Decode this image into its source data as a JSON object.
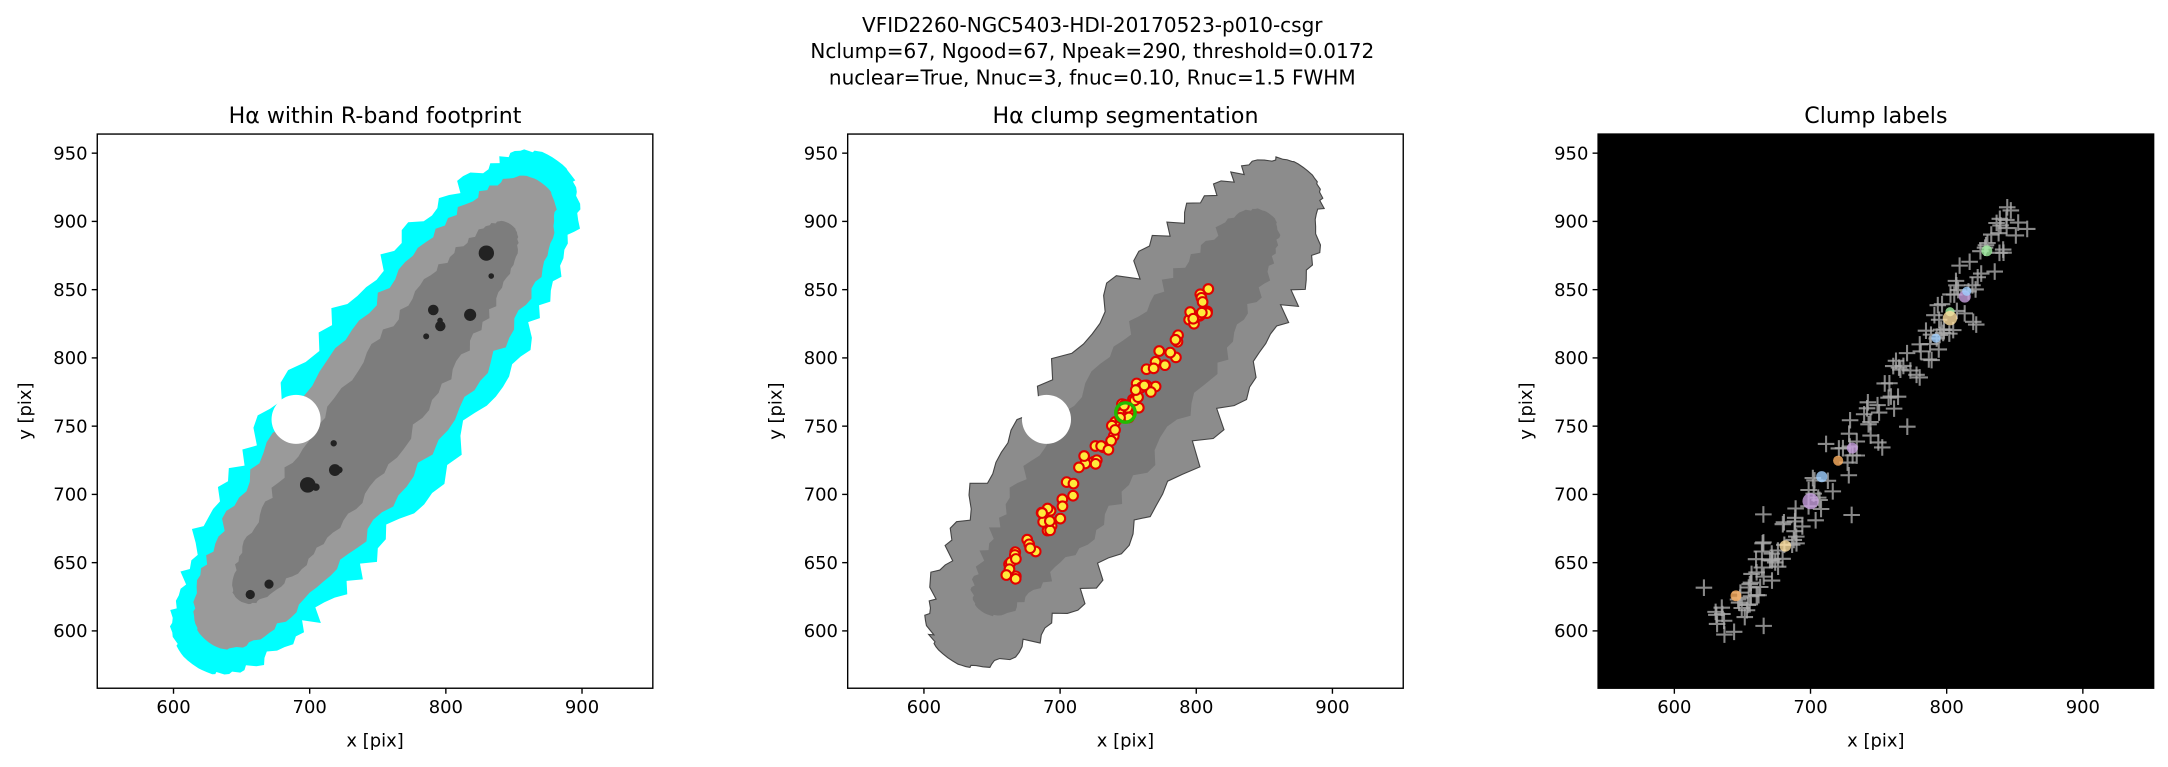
{
  "figure_title": [
    "VFID2260-NGC5403-HDI-20170523-p010-csgr",
    "Nclump=67, Ngood=67, Npeak=290, threshold=0.0172",
    "nuclear=True, Nnuc=3, fnuc=0.10, Rnuc=1.5 FWHM"
  ],
  "chart_data": [
    {
      "type": "image",
      "title": "Hα within R-band footprint",
      "xlabel": "x [pix]",
      "ylabel": "y [pix]",
      "xlim": [
        544,
        952
      ],
      "ylim": [
        558,
        964
      ],
      "xticks": [
        600,
        700,
        800,
        900
      ],
      "yticks": [
        600,
        650,
        700,
        750,
        800,
        850,
        900,
        950
      ],
      "background": "#ffffff"
    },
    {
      "type": "image",
      "title": "Hα clump segmentation",
      "xlabel": "x [pix]",
      "ylabel": "y [pix]",
      "xlim": [
        544,
        952
      ],
      "ylim": [
        558,
        964
      ],
      "xticks": [
        600,
        700,
        800,
        900
      ],
      "yticks": [
        600,
        650,
        700,
        750,
        800,
        850,
        900,
        950
      ],
      "background": "#ffffff"
    },
    {
      "type": "image",
      "title": "Clump labels",
      "xlabel": "x [pix]",
      "ylabel": "y [pix]",
      "xlim": [
        544,
        952
      ],
      "ylim": [
        558,
        964
      ],
      "xticks": [
        600,
        700,
        800,
        900
      ],
      "yticks": [
        600,
        650,
        700,
        750,
        800,
        850,
        900,
        950
      ],
      "background": "#000000"
    }
  ]
}
